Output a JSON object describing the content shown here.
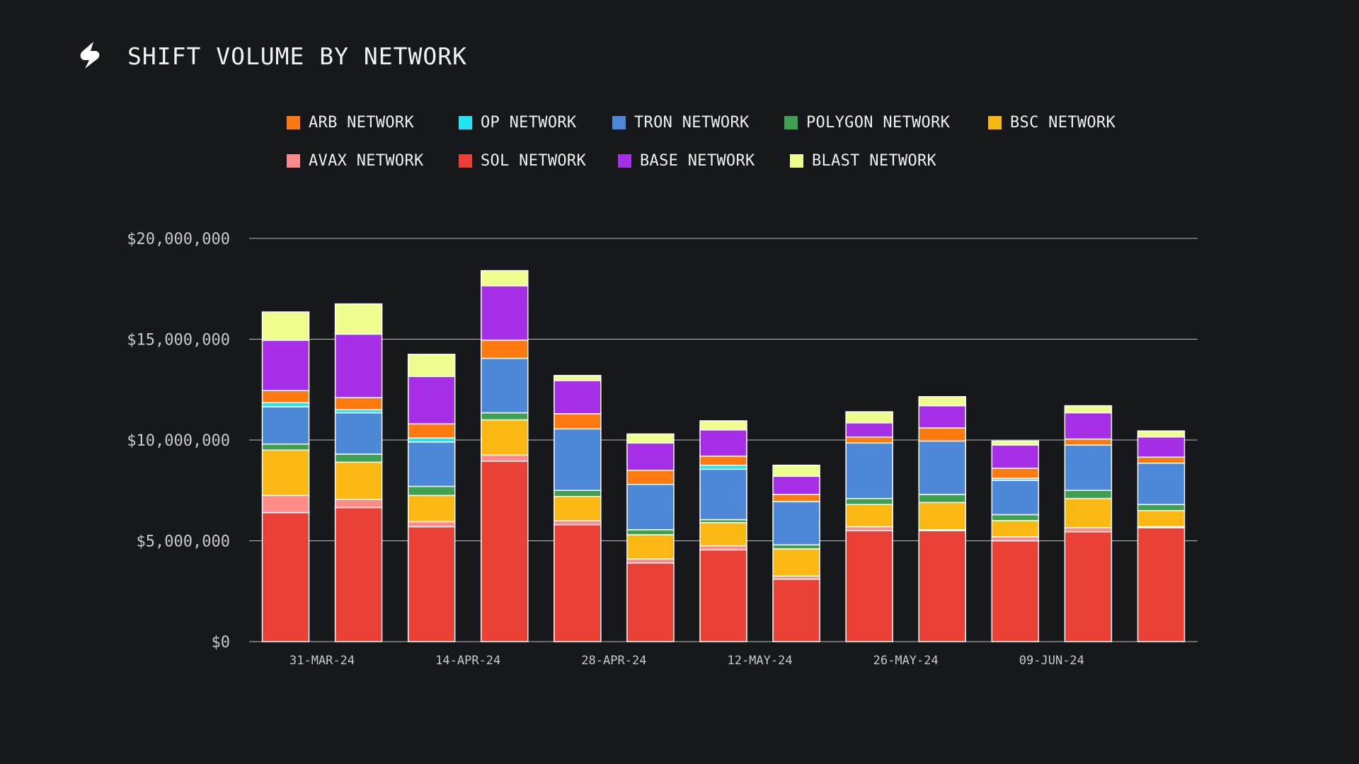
{
  "header": {
    "title": "SHIFT VOLUME BY NETWORK",
    "logo_icon": "shift-logo-icon"
  },
  "colors": {
    "background": "#17181b",
    "gridline": "#d9dadd",
    "bar_outline": "#ffffff"
  },
  "legend": {
    "rows": [
      [
        {
          "series": "arb",
          "label": "ARB NETWORK",
          "color": "#ff7a0e"
        },
        {
          "series": "op",
          "label": "OP NETWORK",
          "color": "#21e6f2"
        },
        {
          "series": "tron",
          "label": "TRON NETWORK",
          "color": "#4d87d8"
        },
        {
          "series": "polygon",
          "label": "POLYGON NETWORK",
          "color": "#3fa14f"
        },
        {
          "series": "bsc",
          "label": "BSC NETWORK",
          "color": "#fbb813"
        }
      ],
      [
        {
          "series": "avax",
          "label": "AVAX NETWORK",
          "color": "#ff8a8a"
        },
        {
          "series": "sol",
          "label": "SOL NETWORK",
          "color": "#ea4036"
        },
        {
          "series": "base",
          "label": "BASE NETWORK",
          "color": "#a52ee6"
        },
        {
          "series": "blast",
          "label": "BLAST NETWORK",
          "color": "#effd8f"
        }
      ]
    ]
  },
  "chart_data": {
    "type": "bar",
    "stacked": true,
    "title": "SHIFT VOLUME BY NETWORK",
    "xlabel": "",
    "ylabel": "",
    "ylim": [
      0,
      20000000
    ],
    "yticks": [
      0,
      5000000,
      10000000,
      15000000,
      20000000
    ],
    "ytick_labels": [
      "$0",
      "$5,000,000",
      "$10,000,000",
      "$15,000,000",
      "$20,000,000"
    ],
    "grid": true,
    "legend_position": "top",
    "xtick_labels": [
      {
        "after_bar": 0,
        "label": "31-MAR-24"
      },
      {
        "after_bar": 2,
        "label": "14-APR-24"
      },
      {
        "after_bar": 4,
        "label": "28-APR-24"
      },
      {
        "after_bar": 6,
        "label": "12-MAY-24"
      },
      {
        "after_bar": 8,
        "label": "26-MAY-24"
      },
      {
        "after_bar": 10,
        "label": "09-JUN-24"
      }
    ],
    "stack_order": [
      "sol",
      "avax",
      "bsc",
      "polygon",
      "tron",
      "op",
      "arb",
      "base",
      "blast"
    ],
    "series": [
      {
        "key": "sol",
        "name": "SOL NETWORK",
        "color": "#ea4036",
        "values": [
          6400000,
          6650000,
          5700000,
          8950000,
          5800000,
          3900000,
          4550000,
          3100000,
          5500000,
          5500000,
          5000000,
          5450000,
          5650000
        ]
      },
      {
        "key": "avax",
        "name": "AVAX NETWORK",
        "color": "#ff8a8a",
        "values": [
          850000,
          400000,
          250000,
          300000,
          200000,
          200000,
          200000,
          150000,
          200000,
          50000,
          200000,
          200000,
          50000
        ]
      },
      {
        "key": "bsc",
        "name": "BSC NETWORK",
        "color": "#fbb813",
        "values": [
          2250000,
          1850000,
          1300000,
          1750000,
          1200000,
          1200000,
          1150000,
          1350000,
          1100000,
          1350000,
          800000,
          1450000,
          800000
        ]
      },
      {
        "key": "polygon",
        "name": "POLYGON NETWORK",
        "color": "#3fa14f",
        "values": [
          300000,
          400000,
          450000,
          350000,
          300000,
          250000,
          150000,
          200000,
          300000,
          400000,
          300000,
          400000,
          300000
        ]
      },
      {
        "key": "tron",
        "name": "TRON NETWORK",
        "color": "#4d87d8",
        "values": [
          1850000,
          2050000,
          2200000,
          2700000,
          3050000,
          2250000,
          2500000,
          2150000,
          2750000,
          2650000,
          1700000,
          2250000,
          2050000
        ]
      },
      {
        "key": "op",
        "name": "OP NETWORK",
        "color": "#21e6f2",
        "values": [
          200000,
          150000,
          200000,
          0,
          0,
          0,
          200000,
          0,
          0,
          0,
          100000,
          0,
          0
        ]
      },
      {
        "key": "arb",
        "name": "ARB NETWORK",
        "color": "#ff7a0e",
        "values": [
          600000,
          600000,
          700000,
          900000,
          750000,
          700000,
          450000,
          350000,
          300000,
          650000,
          500000,
          300000,
          300000
        ]
      },
      {
        "key": "base",
        "name": "BASE NETWORK",
        "color": "#a52ee6",
        "values": [
          2500000,
          3150000,
          2350000,
          2700000,
          1650000,
          1350000,
          1300000,
          900000,
          700000,
          1100000,
          1150000,
          1300000,
          1000000
        ]
      },
      {
        "key": "blast",
        "name": "BLAST NETWORK",
        "color": "#effd8f",
        "values": [
          1400000,
          1500000,
          1100000,
          750000,
          250000,
          450000,
          450000,
          550000,
          550000,
          450000,
          200000,
          350000,
          300000
        ]
      }
    ]
  }
}
